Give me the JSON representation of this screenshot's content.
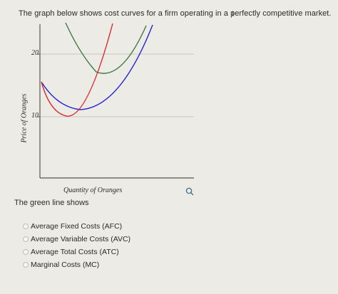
{
  "question": {
    "text": "The graph below shows cost curves for a firm operating in a perfectly competitive market."
  },
  "graph": {
    "y_axis_label": "Price of Oranges",
    "x_axis_label": "Quantity of Oranges",
    "y_ticks": [
      "20",
      "10"
    ],
    "zoom_icon": "magnifier-icon",
    "colors": {
      "green": "#3b7a44",
      "red": "#dc2a2a",
      "blue": "#2323d4",
      "axis": "#555555",
      "grid": "#c4c4c4"
    }
  },
  "prompt": {
    "text": "The green line shows"
  },
  "options": [
    {
      "label": "Average Fixed Costs (AFC)"
    },
    {
      "label": "Average Variable Costs (AVC)"
    },
    {
      "label": "Average Total Costs (ATC)"
    },
    {
      "label": "Marginal Costs (MC)"
    }
  ]
}
